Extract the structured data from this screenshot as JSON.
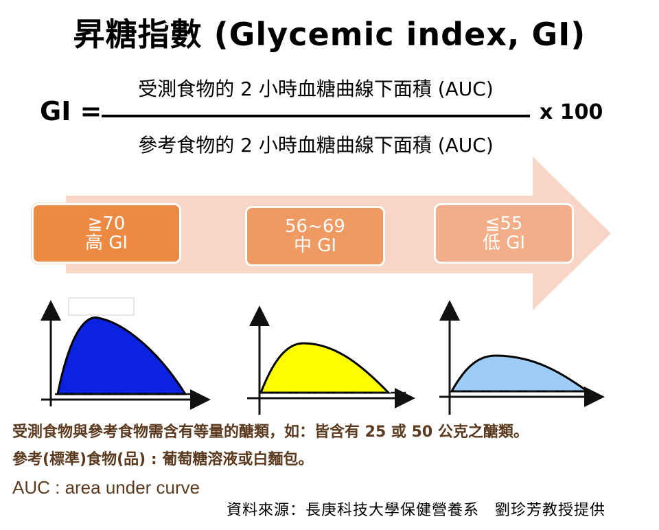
{
  "title": "昇糖指數 (Glycemic index, GI)",
  "formula": {
    "lhs": "GI =",
    "numerator": "受測食物的 2 小時血糖曲線下面積 (AUC)",
    "denominator": "參考食物的 2 小時血糖曲線下面積 (AUC)",
    "multiplier": "x 100"
  },
  "levels": [
    {
      "range": "≧70",
      "label": "高 GI",
      "color": "#ec8a43",
      "curve_color": "#0b22e0"
    },
    {
      "range": "56~69",
      "label": "中 GI",
      "color": "#f09a63",
      "curve_color": "#ffff00"
    },
    {
      "range": "≦55",
      "label": "低 GI",
      "color": "#f2ae88",
      "curve_color": "#9ccbf5"
    }
  ],
  "arrow_color": "#f9d5c8",
  "notes": [
    "受測食物與參考食物需含有等量的醣類，如：皆含有 25 或 50 公克之醣類。",
    "參考(標準)食物(品) : 葡萄糖溶液或白麵包。",
    "AUC : area under curve"
  ],
  "source": "資料來源：長庚科技大學保健營養系　劉珍芳教授提供"
}
